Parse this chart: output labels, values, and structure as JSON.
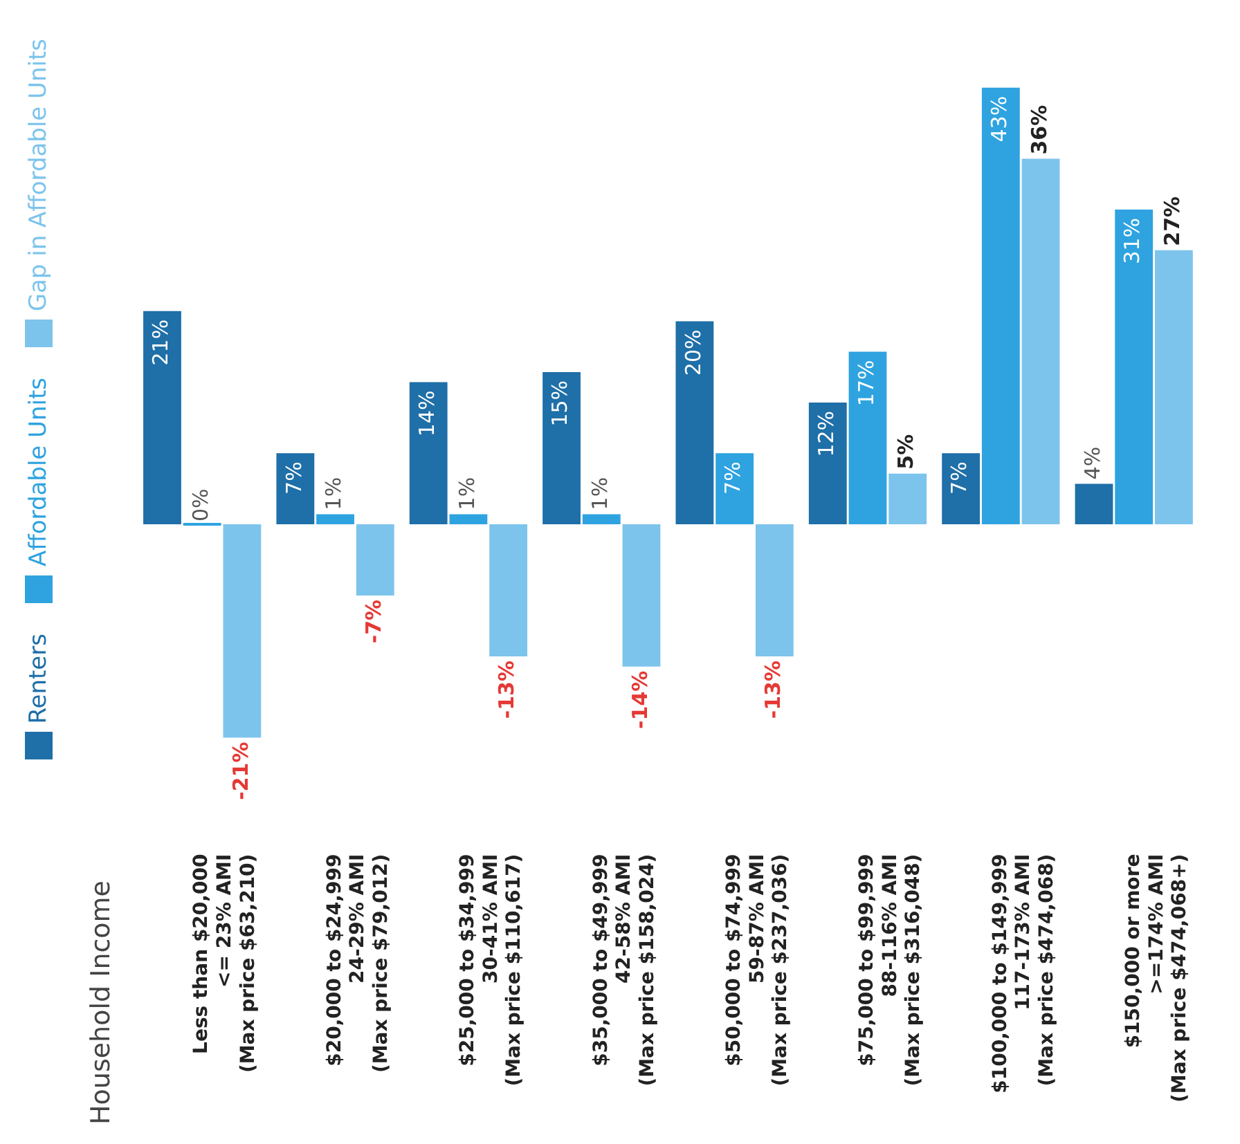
{
  "chart_data": {
    "type": "bar",
    "ylabel": "Household Income",
    "categories": [
      "Less than $20,000\n<= 23% AMI\n(Max price $63,210)",
      "$20,000 to $24,999\n24-29% AMI\n(Max price $79,012)",
      "$25,000 to $34,999\n30-41% AMI\n(Max price $110,617)",
      "$35,000 to $49,999\n42-58% AMI\n(Max price $158,024)",
      "$50,000 to $74,999\n59-87% AMI\n(Max price $237,036)",
      "$75,000 to $99,999\n88-116% AMI\n(Max price $316,048)",
      "$100,000 to $149,999\n117-173% AMI\n(Max price $474,068)",
      "$150,000 or more\n>=174% AMI\n(Max price $474,068+)"
    ],
    "series": [
      {
        "name": "Renters",
        "color": "#1f6fa8",
        "values": [
          21,
          7,
          14,
          15,
          20,
          12,
          7,
          4
        ],
        "value_labels": [
          "21%",
          "7%",
          "14%",
          "15%",
          "20%",
          "12%",
          "7%",
          "4%"
        ]
      },
      {
        "name": "Affordable Units",
        "color": "#2ea3e0",
        "values": [
          0,
          1,
          1,
          1,
          7,
          17,
          43,
          31
        ],
        "value_labels": [
          "0%",
          "1%",
          "1%",
          "1%",
          "7%",
          "17%",
          "43%",
          "31%"
        ]
      },
      {
        "name": "Gap in Affordable Units",
        "color": "#7cc4ec",
        "values": [
          -21,
          -7,
          -13,
          -14,
          -13,
          5,
          36,
          27
        ],
        "value_labels": [
          "-21%",
          "-7%",
          "-13%",
          "-14%",
          "-13%",
          "5%",
          "36%",
          "27%"
        ]
      }
    ],
    "legend": "left"
  }
}
